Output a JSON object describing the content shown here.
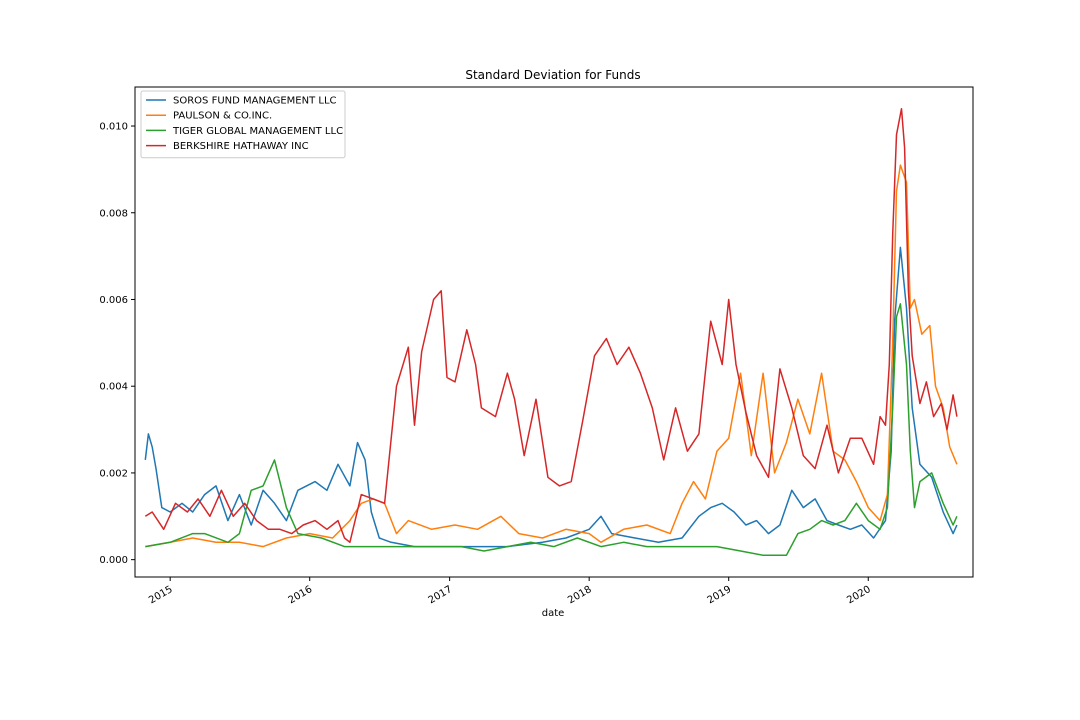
{
  "chart_data": {
    "type": "line",
    "title": "Standard Deviation for Funds",
    "xlabel": "date",
    "ylabel": "",
    "xlim": [
      "2014-10-01",
      "2020-10-01"
    ],
    "ylim": [
      -0.0004,
      0.0109
    ],
    "grid": false,
    "legend_position": "upper-left",
    "x_ticks": [
      "2015",
      "2016",
      "2017",
      "2018",
      "2019",
      "2020"
    ],
    "y_ticks": [
      "0.000",
      "0.002",
      "0.004",
      "0.006",
      "0.008",
      "0.010"
    ],
    "series": [
      {
        "name": "SOROS FUND MANAGEMENT LLC",
        "color": "#1f77b4",
        "points": [
          [
            "2014-10-28",
            0.0023
          ],
          [
            "2014-11-05",
            0.0029
          ],
          [
            "2014-11-15",
            0.0026
          ],
          [
            "2014-11-25",
            0.0021
          ],
          [
            "2014-12-10",
            0.0012
          ],
          [
            "2015-01-01",
            0.0011
          ],
          [
            "2015-02-01",
            0.0013
          ],
          [
            "2015-03-01",
            0.0011
          ],
          [
            "2015-04-01",
            0.0015
          ],
          [
            "2015-05-01",
            0.0017
          ],
          [
            "2015-06-01",
            0.0009
          ],
          [
            "2015-07-01",
            0.0015
          ],
          [
            "2015-08-01",
            0.0008
          ],
          [
            "2015-09-01",
            0.0016
          ],
          [
            "2015-10-01",
            0.0013
          ],
          [
            "2015-11-01",
            0.0009
          ],
          [
            "2015-12-01",
            0.0016
          ],
          [
            "2016-01-15",
            0.0018
          ],
          [
            "2016-02-15",
            0.0016
          ],
          [
            "2016-03-15",
            0.0022
          ],
          [
            "2016-04-15",
            0.0017
          ],
          [
            "2016-05-05",
            0.0027
          ],
          [
            "2016-05-25",
            0.0023
          ],
          [
            "2016-06-10",
            0.0011
          ],
          [
            "2016-07-01",
            0.0005
          ],
          [
            "2016-08-01",
            0.0004
          ],
          [
            "2016-10-01",
            0.0003
          ],
          [
            "2016-12-01",
            0.0003
          ],
          [
            "2017-03-01",
            0.0003
          ],
          [
            "2017-06-01",
            0.0003
          ],
          [
            "2017-09-01",
            0.0004
          ],
          [
            "2017-11-01",
            0.0005
          ],
          [
            "2018-01-01",
            0.0007
          ],
          [
            "2018-02-01",
            0.001
          ],
          [
            "2018-03-01",
            0.0006
          ],
          [
            "2018-05-01",
            0.0005
          ],
          [
            "2018-07-01",
            0.0004
          ],
          [
            "2018-09-01",
            0.0005
          ],
          [
            "2018-10-15",
            0.001
          ],
          [
            "2018-11-15",
            0.0012
          ],
          [
            "2018-12-15",
            0.0013
          ],
          [
            "2019-01-15",
            0.0011
          ],
          [
            "2019-02-15",
            0.0008
          ],
          [
            "2019-03-15",
            0.0009
          ],
          [
            "2019-04-15",
            0.0006
          ],
          [
            "2019-05-15",
            0.0008
          ],
          [
            "2019-06-15",
            0.0016
          ],
          [
            "2019-07-15",
            0.0012
          ],
          [
            "2019-08-15",
            0.0014
          ],
          [
            "2019-09-15",
            0.0009
          ],
          [
            "2019-10-15",
            0.0008
          ],
          [
            "2019-11-15",
            0.0007
          ],
          [
            "2019-12-15",
            0.0008
          ],
          [
            "2020-01-15",
            0.0005
          ],
          [
            "2020-02-15",
            0.0009
          ],
          [
            "2020-03-01",
            0.0025
          ],
          [
            "2020-03-10",
            0.0055
          ],
          [
            "2020-03-25",
            0.0072
          ],
          [
            "2020-04-10",
            0.0058
          ],
          [
            "2020-04-25",
            0.0035
          ],
          [
            "2020-05-15",
            0.0022
          ],
          [
            "2020-06-15",
            0.0019
          ],
          [
            "2020-07-15",
            0.0011
          ],
          [
            "2020-08-10",
            0.0006
          ],
          [
            "2020-08-20",
            0.0008
          ]
        ]
      },
      {
        "name": "PAULSON & CO.INC.",
        "color": "#ff7f0e",
        "points": [
          [
            "2014-10-28",
            0.0003
          ],
          [
            "2015-01-01",
            0.0004
          ],
          [
            "2015-03-01",
            0.0005
          ],
          [
            "2015-05-01",
            0.0004
          ],
          [
            "2015-07-01",
            0.0004
          ],
          [
            "2015-09-01",
            0.0003
          ],
          [
            "2015-11-01",
            0.0005
          ],
          [
            "2016-01-01",
            0.0006
          ],
          [
            "2016-03-01",
            0.0005
          ],
          [
            "2016-04-15",
            0.0009
          ],
          [
            "2016-05-15",
            0.0013
          ],
          [
            "2016-06-15",
            0.0014
          ],
          [
            "2016-07-15",
            0.0013
          ],
          [
            "2016-08-15",
            0.0006
          ],
          [
            "2016-09-15",
            0.0009
          ],
          [
            "2016-11-15",
            0.0007
          ],
          [
            "2017-01-15",
            0.0008
          ],
          [
            "2017-03-15",
            0.0007
          ],
          [
            "2017-05-15",
            0.001
          ],
          [
            "2017-07-01",
            0.0006
          ],
          [
            "2017-09-01",
            0.0005
          ],
          [
            "2017-11-01",
            0.0007
          ],
          [
            "2018-01-01",
            0.0006
          ],
          [
            "2018-02-01",
            0.0004
          ],
          [
            "2018-04-01",
            0.0007
          ],
          [
            "2018-06-01",
            0.0008
          ],
          [
            "2018-08-01",
            0.0006
          ],
          [
            "2018-09-01",
            0.0013
          ],
          [
            "2018-10-01",
            0.0018
          ],
          [
            "2018-11-01",
            0.0014
          ],
          [
            "2018-12-01",
            0.0025
          ],
          [
            "2019-01-01",
            0.0028
          ],
          [
            "2019-02-01",
            0.0043
          ],
          [
            "2019-03-01",
            0.0024
          ],
          [
            "2019-04-01",
            0.0043
          ],
          [
            "2019-05-01",
            0.002
          ],
          [
            "2019-06-01",
            0.0027
          ],
          [
            "2019-07-01",
            0.0037
          ],
          [
            "2019-08-01",
            0.0029
          ],
          [
            "2019-09-01",
            0.0043
          ],
          [
            "2019-10-01",
            0.0025
          ],
          [
            "2019-11-01",
            0.0023
          ],
          [
            "2019-12-01",
            0.0018
          ],
          [
            "2020-01-01",
            0.0012
          ],
          [
            "2020-02-01",
            0.0009
          ],
          [
            "2020-02-20",
            0.0015
          ],
          [
            "2020-03-05",
            0.005
          ],
          [
            "2020-03-15",
            0.0085
          ],
          [
            "2020-03-25",
            0.0091
          ],
          [
            "2020-04-10",
            0.0087
          ],
          [
            "2020-04-20",
            0.0058
          ],
          [
            "2020-05-01",
            0.006
          ],
          [
            "2020-05-20",
            0.0052
          ],
          [
            "2020-06-10",
            0.0054
          ],
          [
            "2020-06-25",
            0.004
          ],
          [
            "2020-07-15",
            0.0035
          ],
          [
            "2020-08-01",
            0.0026
          ],
          [
            "2020-08-20",
            0.0022
          ]
        ]
      },
      {
        "name": "TIGER GLOBAL MANAGEMENT LLC",
        "color": "#2ca02c",
        "points": [
          [
            "2014-10-28",
            0.0003
          ],
          [
            "2015-01-01",
            0.0004
          ],
          [
            "2015-03-01",
            0.0006
          ],
          [
            "2015-04-01",
            0.0006
          ],
          [
            "2015-06-01",
            0.0004
          ],
          [
            "2015-07-01",
            0.0006
          ],
          [
            "2015-08-01",
            0.0016
          ],
          [
            "2015-09-01",
            0.0017
          ],
          [
            "2015-10-01",
            0.0023
          ],
          [
            "2015-11-01",
            0.0012
          ],
          [
            "2015-12-01",
            0.0006
          ],
          [
            "2016-02-01",
            0.0005
          ],
          [
            "2016-04-01",
            0.0003
          ],
          [
            "2016-06-01",
            0.0003
          ],
          [
            "2016-08-01",
            0.0003
          ],
          [
            "2016-10-01",
            0.0003
          ],
          [
            "2016-12-01",
            0.0003
          ],
          [
            "2017-02-01",
            0.0003
          ],
          [
            "2017-04-01",
            0.0002
          ],
          [
            "2017-06-01",
            0.0003
          ],
          [
            "2017-08-01",
            0.0004
          ],
          [
            "2017-10-01",
            0.0003
          ],
          [
            "2017-12-01",
            0.0005
          ],
          [
            "2018-02-01",
            0.0003
          ],
          [
            "2018-04-01",
            0.0004
          ],
          [
            "2018-06-01",
            0.0003
          ],
          [
            "2018-08-01",
            0.0003
          ],
          [
            "2018-10-01",
            0.0003
          ],
          [
            "2018-12-01",
            0.0003
          ],
          [
            "2019-02-01",
            0.0002
          ],
          [
            "2019-04-01",
            0.0001
          ],
          [
            "2019-06-01",
            0.0001
          ],
          [
            "2019-07-01",
            0.0006
          ],
          [
            "2019-08-01",
            0.0007
          ],
          [
            "2019-09-01",
            0.0009
          ],
          [
            "2019-10-01",
            0.0008
          ],
          [
            "2019-11-01",
            0.0009
          ],
          [
            "2019-12-01",
            0.0013
          ],
          [
            "2020-01-01",
            0.0009
          ],
          [
            "2020-02-01",
            0.0007
          ],
          [
            "2020-02-20",
            0.0012
          ],
          [
            "2020-03-05",
            0.0035
          ],
          [
            "2020-03-15",
            0.0056
          ],
          [
            "2020-03-25",
            0.0059
          ],
          [
            "2020-04-10",
            0.0045
          ],
          [
            "2020-04-20",
            0.0025
          ],
          [
            "2020-05-01",
            0.0012
          ],
          [
            "2020-05-15",
            0.0018
          ],
          [
            "2020-06-15",
            0.002
          ],
          [
            "2020-07-15",
            0.0013
          ],
          [
            "2020-08-10",
            0.0008
          ],
          [
            "2020-08-20",
            0.001
          ]
        ]
      },
      {
        "name": "BERKSHIRE HATHAWAY INC",
        "color": "#d62728",
        "points": [
          [
            "2014-10-28",
            0.001
          ],
          [
            "2014-11-15",
            0.0011
          ],
          [
            "2014-12-15",
            0.0007
          ],
          [
            "2015-01-15",
            0.0013
          ],
          [
            "2015-02-15",
            0.0011
          ],
          [
            "2015-03-15",
            0.0014
          ],
          [
            "2015-04-15",
            0.001
          ],
          [
            "2015-05-15",
            0.0016
          ],
          [
            "2015-06-15",
            0.001
          ],
          [
            "2015-07-15",
            0.0013
          ],
          [
            "2015-08-15",
            0.0009
          ],
          [
            "2015-09-15",
            0.0007
          ],
          [
            "2015-10-15",
            0.0007
          ],
          [
            "2015-11-15",
            0.0006
          ],
          [
            "2015-12-15",
            0.0008
          ],
          [
            "2016-01-15",
            0.0009
          ],
          [
            "2016-02-15",
            0.0007
          ],
          [
            "2016-03-15",
            0.0009
          ],
          [
            "2016-04-01",
            0.0005
          ],
          [
            "2016-04-15",
            0.0004
          ],
          [
            "2016-05-15",
            0.0015
          ],
          [
            "2016-06-15",
            0.0014
          ],
          [
            "2016-07-15",
            0.0013
          ],
          [
            "2016-08-15",
            0.004
          ],
          [
            "2016-09-15",
            0.0049
          ],
          [
            "2016-10-01",
            0.0031
          ],
          [
            "2016-10-20",
            0.0048
          ],
          [
            "2016-11-20",
            0.006
          ],
          [
            "2016-12-10",
            0.0062
          ],
          [
            "2016-12-25",
            0.0042
          ],
          [
            "2017-01-15",
            0.0041
          ],
          [
            "2017-02-15",
            0.0053
          ],
          [
            "2017-03-10",
            0.0045
          ],
          [
            "2017-03-25",
            0.0035
          ],
          [
            "2017-05-01",
            0.0033
          ],
          [
            "2017-06-01",
            0.0043
          ],
          [
            "2017-06-20",
            0.0037
          ],
          [
            "2017-07-15",
            0.0024
          ],
          [
            "2017-08-15",
            0.0037
          ],
          [
            "2017-09-15",
            0.0019
          ],
          [
            "2017-10-15",
            0.0017
          ],
          [
            "2017-11-15",
            0.0018
          ],
          [
            "2017-12-15",
            0.0032
          ],
          [
            "2018-01-15",
            0.0047
          ],
          [
            "2018-02-15",
            0.0051
          ],
          [
            "2018-03-15",
            0.0045
          ],
          [
            "2018-04-15",
            0.0049
          ],
          [
            "2018-05-15",
            0.0043
          ],
          [
            "2018-06-15",
            0.0035
          ],
          [
            "2018-07-15",
            0.0023
          ],
          [
            "2018-08-15",
            0.0035
          ],
          [
            "2018-09-15",
            0.0025
          ],
          [
            "2018-10-15",
            0.0029
          ],
          [
            "2018-11-15",
            0.0055
          ],
          [
            "2018-12-15",
            0.0045
          ],
          [
            "2019-01-01",
            0.006
          ],
          [
            "2019-01-20",
            0.0045
          ],
          [
            "2019-02-15",
            0.0034
          ],
          [
            "2019-03-15",
            0.0024
          ],
          [
            "2019-04-15",
            0.0019
          ],
          [
            "2019-05-15",
            0.0044
          ],
          [
            "2019-06-15",
            0.0035
          ],
          [
            "2019-07-15",
            0.0024
          ],
          [
            "2019-08-15",
            0.0021
          ],
          [
            "2019-09-15",
            0.0031
          ],
          [
            "2019-10-15",
            0.002
          ],
          [
            "2019-11-15",
            0.0028
          ],
          [
            "2019-12-15",
            0.0028
          ],
          [
            "2020-01-15",
            0.0022
          ],
          [
            "2020-02-01",
            0.0033
          ],
          [
            "2020-02-15",
            0.0031
          ],
          [
            "2020-02-25",
            0.0045
          ],
          [
            "2020-03-05",
            0.0075
          ],
          [
            "2020-03-15",
            0.0098
          ],
          [
            "2020-03-28",
            0.0104
          ],
          [
            "2020-04-05",
            0.0095
          ],
          [
            "2020-04-15",
            0.0062
          ],
          [
            "2020-04-25",
            0.0047
          ],
          [
            "2020-05-15",
            0.0036
          ],
          [
            "2020-06-01",
            0.0041
          ],
          [
            "2020-06-20",
            0.0033
          ],
          [
            "2020-07-10",
            0.0036
          ],
          [
            "2020-07-25",
            0.003
          ],
          [
            "2020-08-10",
            0.0038
          ],
          [
            "2020-08-20",
            0.0033
          ]
        ]
      }
    ]
  }
}
